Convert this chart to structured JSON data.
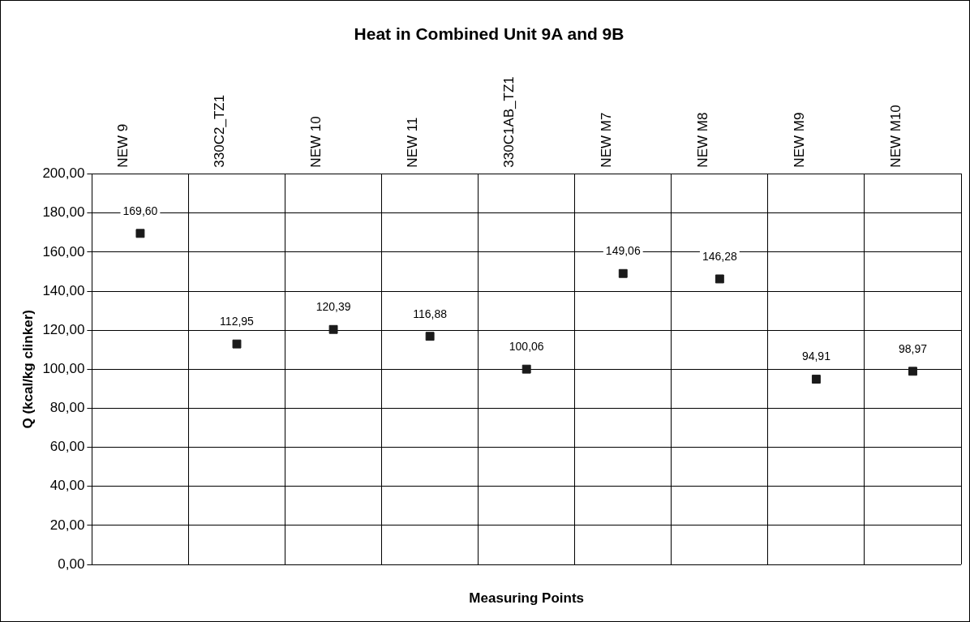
{
  "chart_data": {
    "type": "scatter",
    "title": "Heat in Combined Unit 9A and 9B",
    "xlabel": "Measuring Points",
    "ylabel": "Q (kcal/kg clinker)",
    "categories": [
      "NEW 9",
      "330C2_TZ1",
      "NEW 10",
      "NEW 11",
      "330C1AB_TZ1",
      "NEW M7",
      "NEW M8",
      "NEW M9",
      "NEW M10"
    ],
    "values": [
      169.6,
      112.95,
      120.39,
      116.88,
      100.06,
      149.06,
      146.28,
      94.91,
      98.97
    ],
    "value_labels": [
      "169,60",
      "112,95",
      "120,39",
      "116,88",
      "100,06",
      "149,06",
      "146,28",
      "94,91",
      "98,97"
    ],
    "color": "#1a1a1a",
    "marker": "square",
    "ylim": [
      0,
      200
    ],
    "yticks": [
      {
        "value": 0,
        "label": "0,00"
      },
      {
        "value": 20,
        "label": "20,00"
      },
      {
        "value": 40,
        "label": "40,00"
      },
      {
        "value": 60,
        "label": "60,00"
      },
      {
        "value": 80,
        "label": "80,00"
      },
      {
        "value": 100,
        "label": "100,00"
      },
      {
        "value": 120,
        "label": "120,00"
      },
      {
        "value": 140,
        "label": "140,00"
      },
      {
        "value": 160,
        "label": "160,00"
      },
      {
        "value": 180,
        "label": "180,00"
      },
      {
        "value": 200,
        "label": "200,00"
      }
    ],
    "grid": true,
    "legend": false
  }
}
